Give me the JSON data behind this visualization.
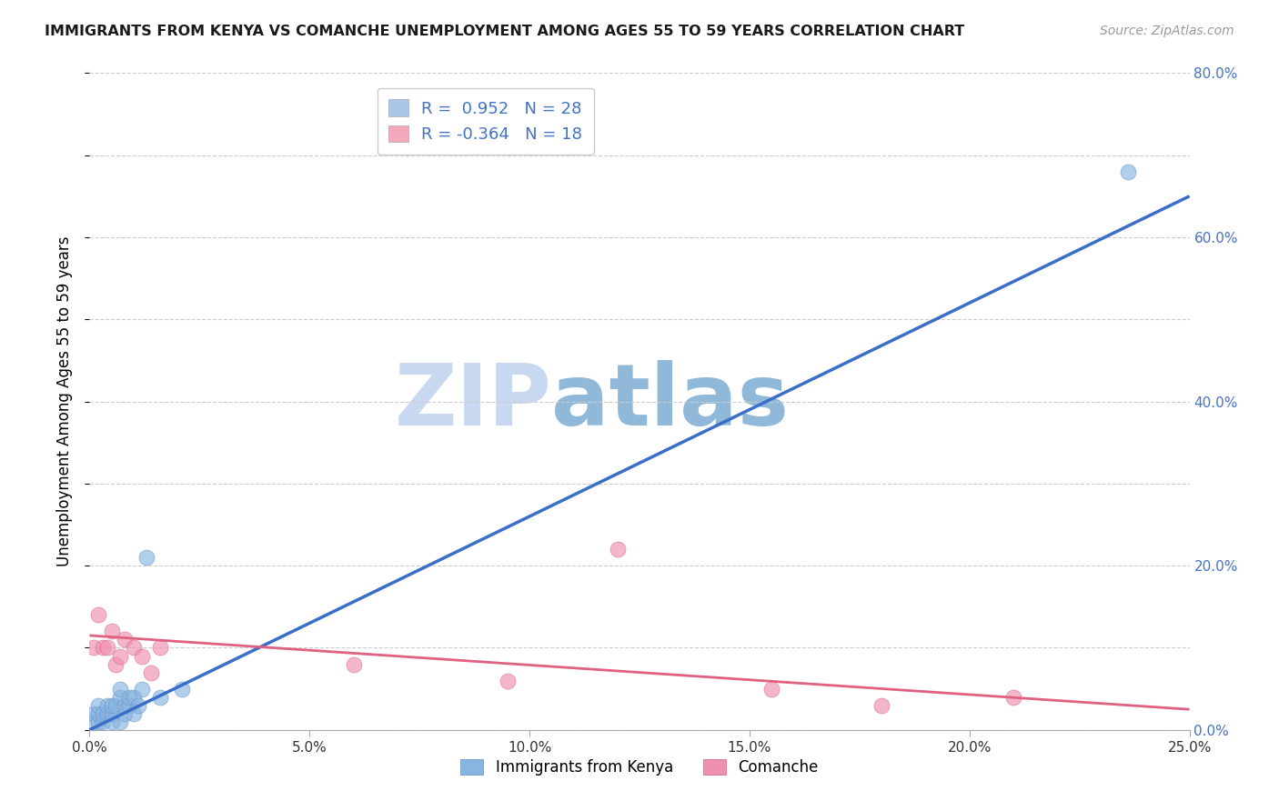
{
  "title": "IMMIGRANTS FROM KENYA VS COMANCHE UNEMPLOYMENT AMONG AGES 55 TO 59 YEARS CORRELATION CHART",
  "source": "Source: ZipAtlas.com",
  "ylabel": "Unemployment Among Ages 55 to 59 years",
  "x_tick_labels": [
    "0.0%",
    "5.0%",
    "10.0%",
    "15.0%",
    "20.0%",
    "25.0%"
  ],
  "x_tick_vals": [
    0.0,
    0.05,
    0.1,
    0.15,
    0.2,
    0.25
  ],
  "y_tick_labels": [
    "0.0%",
    "20.0%",
    "40.0%",
    "60.0%",
    "80.0%"
  ],
  "y_tick_vals": [
    0.0,
    0.2,
    0.4,
    0.6,
    0.8
  ],
  "xlim": [
    0.0,
    0.25
  ],
  "ylim": [
    0.0,
    0.8
  ],
  "legend_r_n": [
    {
      "r_text": " 0.952",
      "n_text": "28",
      "color": "#aac4e8"
    },
    {
      "r_text": "-0.364",
      "n_text": "18",
      "color": "#f4a8bc"
    }
  ],
  "legend_labels": [
    "Immigrants from Kenya",
    "Comanche"
  ],
  "kenya_x": [
    0.001,
    0.001,
    0.002,
    0.002,
    0.002,
    0.003,
    0.003,
    0.004,
    0.004,
    0.005,
    0.005,
    0.005,
    0.006,
    0.007,
    0.007,
    0.007,
    0.008,
    0.008,
    0.009,
    0.009,
    0.01,
    0.01,
    0.011,
    0.012,
    0.013,
    0.016,
    0.021,
    0.236
  ],
  "kenya_y": [
    0.01,
    0.02,
    0.01,
    0.02,
    0.03,
    0.01,
    0.02,
    0.02,
    0.03,
    0.01,
    0.02,
    0.03,
    0.03,
    0.01,
    0.04,
    0.05,
    0.02,
    0.03,
    0.03,
    0.04,
    0.02,
    0.04,
    0.03,
    0.05,
    0.21,
    0.04,
    0.05,
    0.68
  ],
  "comanche_x": [
    0.001,
    0.002,
    0.003,
    0.004,
    0.005,
    0.006,
    0.007,
    0.008,
    0.01,
    0.012,
    0.014,
    0.016,
    0.06,
    0.095,
    0.12,
    0.155,
    0.18,
    0.21
  ],
  "comanche_y": [
    0.1,
    0.14,
    0.1,
    0.1,
    0.12,
    0.08,
    0.09,
    0.11,
    0.1,
    0.09,
    0.07,
    0.1,
    0.08,
    0.06,
    0.22,
    0.05,
    0.03,
    0.04
  ],
  "blue_line_x": [
    0.0,
    0.25
  ],
  "blue_line_y": [
    0.0,
    0.65
  ],
  "pink_line_x": [
    0.0,
    0.25
  ],
  "pink_line_y": [
    0.115,
    0.025
  ],
  "blue_line_color": "#3a6ec8",
  "pink_line_color": "#e06080",
  "scatter_blue": "#88b4e0",
  "scatter_blue_edge": "#6090c8",
  "scatter_pink": "#f090b0",
  "scatter_pink_edge": "#d06080",
  "grid_color": "#cccccc",
  "background_color": "#ffffff",
  "watermark_zip": "ZIP",
  "watermark_atlas": "atlas",
  "watermark_color_zip": "#c8d8f0",
  "watermark_color_atlas": "#90b8d8",
  "title_color": "#1a1a1a",
  "source_color": "#999999",
  "tick_label_color_y": "#4472c4",
  "tick_label_color_x": "#333333"
}
